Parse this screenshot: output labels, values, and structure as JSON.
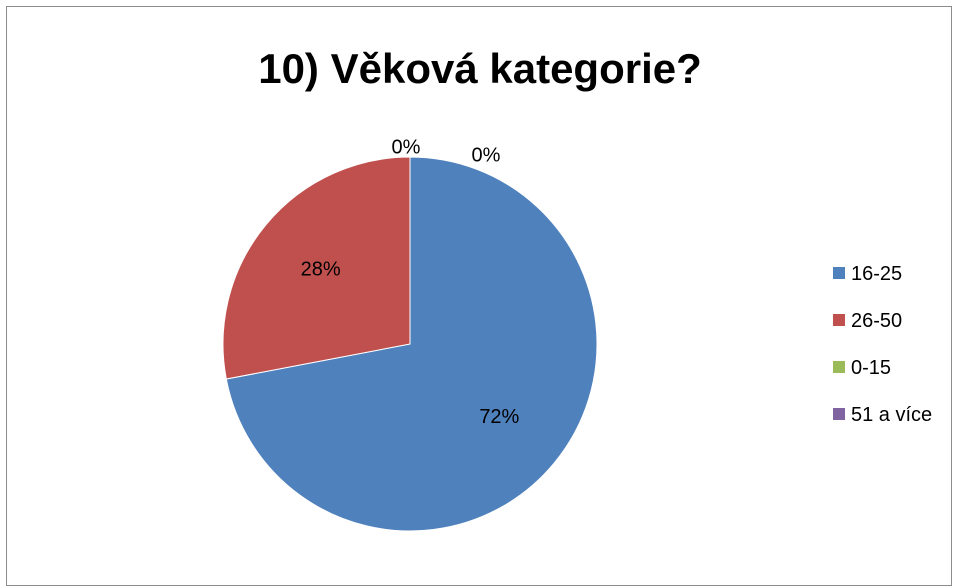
{
  "chart_data": {
    "type": "pie",
    "title": "10) Věková kategorie?",
    "categories": [
      "16-25",
      "26-50",
      "0-15",
      "51 a více"
    ],
    "values": [
      72,
      28,
      0,
      0
    ],
    "data_labels": [
      "72%",
      "28%",
      "0%",
      "0%"
    ],
    "colors": [
      "#4f81bd",
      "#c0504d",
      "#9bbb59",
      "#8064a2"
    ],
    "legend_position": "right",
    "unit": "%"
  }
}
